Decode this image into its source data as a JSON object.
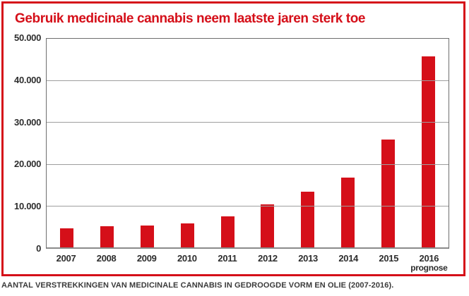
{
  "caption": "AANTAL VERSTREKKINGEN VAN MEDICINALE CANNABIS IN GEDROOGDE VORM EN OLIE (2007-2016).",
  "colors": {
    "accent_red": "#d50f19",
    "frame_red": "#d50f19",
    "grid_gray": "#9e9e9e",
    "axis_border_gray": "#6e6e6e",
    "label_dark": "#2d2d2d",
    "caption_gray": "#3a3a3a"
  },
  "chart_data": {
    "type": "bar",
    "title": "Gebruik medicinale cannabis neem laatste jaren sterk toe",
    "categories": [
      "2007",
      "2008",
      "2009",
      "2010",
      "2011",
      "2012",
      "2013",
      "2014",
      "2015",
      "2016"
    ],
    "category_sublabels": [
      "",
      "",
      "",
      "",
      "",
      "",
      "",
      "",
      "",
      "prognose"
    ],
    "values": [
      4500,
      5000,
      5300,
      5800,
      7400,
      10300,
      13400,
      16800,
      25800,
      45700
    ],
    "xlabel": "",
    "ylabel": "",
    "ylim": [
      0,
      50000
    ],
    "ytick_interval": 10000,
    "ytick_labels": [
      "50.000",
      "40.000",
      "30.000",
      "20.000",
      "10.000",
      "0"
    ],
    "grid": true,
    "legend": false,
    "bar_color": "#d50f19"
  }
}
